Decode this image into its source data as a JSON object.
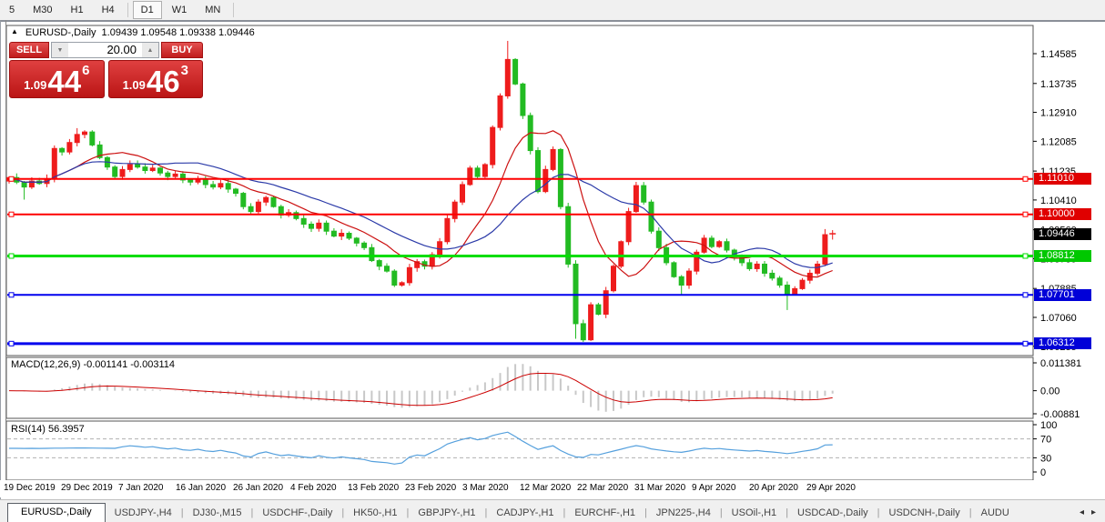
{
  "toolbar": {
    "timeframes": [
      "5",
      "M30",
      "H1",
      "H4",
      "D1",
      "W1",
      "MN"
    ],
    "active_timeframe": "D1"
  },
  "chart_header": {
    "collapse_icon": "▲",
    "title": "EURUSD-,Daily",
    "ohlc": "1.09439 1.09548 1.09338 1.09446"
  },
  "trade_panel": {
    "sell_label": "SELL",
    "buy_label": "BUY",
    "volume": "20.00",
    "spinner_down_icon": "▼",
    "spinner_up_icon": "▲",
    "sell_price": {
      "big_prefix": "1.09",
      "big": "44",
      "sup": "6"
    },
    "buy_price": {
      "big_prefix": "1.09",
      "big": "46",
      "sup": "3"
    }
  },
  "indicators": {
    "macd": {
      "label": "MACD(12,26,9) -0.001141 -0.003114",
      "axis": [
        "0.011381",
        "0.00",
        "-0.00881"
      ]
    },
    "rsi": {
      "label": "RSI(14) 56.3957",
      "axis": [
        100,
        70,
        30,
        0
      ],
      "levels": [
        70,
        30
      ]
    }
  },
  "tabs": [
    "EURUSD-,Daily",
    "USDJPY-,H4",
    "DJ30-,M15",
    "USDCHF-,Daily",
    "HK50-,H1",
    "GBPJPY-,H1",
    "CADJPY-,H1",
    "EURCHF-,H1",
    "JPN225-,H4",
    "USOil-,H1",
    "USDCAD-,Daily",
    "USDCNH-,Daily",
    "AUDU"
  ],
  "active_tab": "EURUSD-,Daily",
  "tab_scroll": {
    "left": "◂",
    "right": "▸"
  },
  "chart_data": {
    "type": "candlestick",
    "symbol": "EURUSD-",
    "timeframe": "Daily",
    "ohlc_current": {
      "open": 1.09439,
      "high": 1.09548,
      "low": 1.09338,
      "close": 1.09446
    },
    "x_labels": [
      "19 Dec 2019",
      "29 Dec 2019",
      "7 Jan 2020",
      "16 Jan 2020",
      "26 Jan 2020",
      "4 Feb 2020",
      "13 Feb 2020",
      "23 Feb 2020",
      "3 Mar 2020",
      "12 Mar 2020",
      "22 Mar 2020",
      "31 Mar 2020",
      "9 Apr 2020",
      "20 Apr 2020",
      "29 Apr 2020"
    ],
    "y_ticks": [
      "1.14585",
      "1.13735",
      "1.12910",
      "1.12085",
      "1.11235",
      "1.10410",
      "1.09560",
      "1.08735",
      "1.07885",
      "1.07060",
      "1.06235"
    ],
    "price_range": {
      "top": 1.1539,
      "bottom": 1.0597
    },
    "closes": [
      1.1105,
      1.1092,
      1.1078,
      1.1095,
      1.1088,
      1.1102,
      1.1188,
      1.1178,
      1.1205,
      1.1228,
      1.1235,
      1.1198,
      1.1162,
      1.1135,
      1.1108,
      1.1128,
      1.1142,
      1.1135,
      1.1125,
      1.1132,
      1.1118,
      1.1108,
      1.1115,
      1.1098,
      1.1092,
      1.1102,
      1.1085,
      1.1078,
      1.1088,
      1.1072,
      1.106,
      1.1022,
      1.1008,
      1.1035,
      1.1048,
      1.1022,
      1.0998,
      1.1005,
      1.0988,
      1.0972,
      1.096,
      1.0975,
      1.0952,
      1.0938,
      1.0946,
      1.0932,
      1.0918,
      1.0905,
      1.0868,
      1.0852,
      1.0838,
      1.0798,
      1.0805,
      1.0848,
      1.0865,
      1.0852,
      1.0885,
      1.0922,
      1.0988,
      1.1035,
      1.1085,
      1.1132,
      1.1108,
      1.1142,
      1.1248,
      1.1338,
      1.1442,
      1.1372,
      1.1282,
      1.1182,
      1.1065,
      1.1128,
      1.1185,
      1.1022,
      1.0858,
      1.0688,
      1.0642,
      1.0742,
      1.0715,
      1.0782,
      1.0852,
      1.0922,
      1.1008,
      1.1082,
      1.1035,
      1.0952,
      1.0905,
      1.0862,
      1.0822,
      1.0798,
      1.0838,
      1.0892,
      1.0932,
      1.0908,
      1.0922,
      1.0898,
      1.0878,
      1.0862,
      1.0845,
      1.0858,
      1.0832,
      1.0818,
      1.0798,
      1.0772,
      1.0788,
      1.0812,
      1.0832,
      1.0858,
      1.0942,
      1.09446
    ],
    "wick_overrides": {
      "2": [
        null,
        1.1042
      ],
      "9": [
        1.1246,
        null
      ],
      "66": [
        1.1495,
        1.133
      ],
      "75": [
        null,
        1.0645
      ],
      "76": [
        null,
        1.0636
      ],
      "89": [
        null,
        1.077
      ],
      "103": [
        null,
        1.0727
      ],
      "108": [
        1.0958,
        1.0852
      ],
      "109": [
        1.0955,
        1.0928
      ]
    },
    "hlines": [
      {
        "price": 1.1101,
        "label": "1.11010",
        "color": "#fe0000",
        "tag_bg": "#e00000",
        "width": 2
      },
      {
        "price": 1.1,
        "label": "1.10000",
        "color": "#fe0000",
        "tag_bg": "#e00000",
        "width": 2
      },
      {
        "price": 1.08812,
        "label": "1.08812",
        "color": "#00dd00",
        "tag_bg": "#00c800",
        "width": 3
      },
      {
        "price": 1.07701,
        "label": "1.07701",
        "color": "#0000ee",
        "tag_bg": "#0000d8",
        "width": 2
      },
      {
        "price": 1.06312,
        "label": "1.06312",
        "color": "#0000ee",
        "tag_bg": "#0000d8",
        "width": 3
      }
    ],
    "current_price": {
      "value": 1.09446,
      "label": "1.09446",
      "tag_bg": "#000000"
    },
    "moving_averages": [
      {
        "name": "fast-ma",
        "period": 10,
        "color": "#cc1111"
      },
      {
        "name": "slow-ma",
        "period": 20,
        "color": "#2b3aa8"
      }
    ],
    "macd": {
      "params": [
        12,
        26,
        9
      ],
      "main_last": -0.001141,
      "signal_last": -0.003114
    },
    "rsi": {
      "period": 14,
      "last": 56.3957
    },
    "colors": {
      "bull": "#ee1c1c",
      "bear": "#22bb22",
      "macd_hist": "#c8c8c8",
      "macd_signal": "#cc0000",
      "rsi_line": "#55a0dd",
      "level_dash": "#b0b0b0",
      "pane_border": "#555555"
    }
  }
}
